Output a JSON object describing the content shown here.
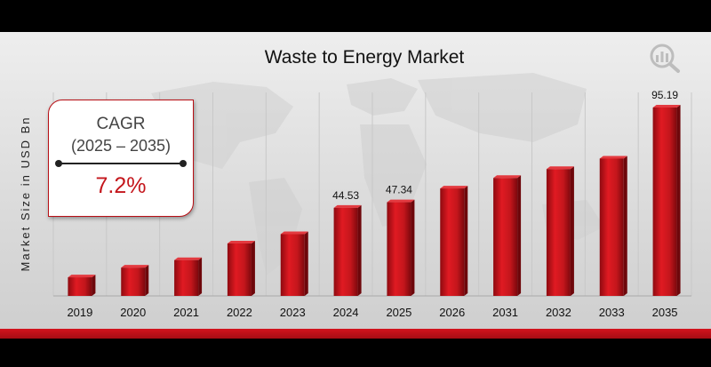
{
  "chart_data": {
    "type": "bar",
    "title": "Waste to Energy Market",
    "ylabel": "Market Size in USD Bn",
    "xlabel": "",
    "categories": [
      "2019",
      "2020",
      "2021",
      "2022",
      "2023",
      "2024",
      "2025",
      "2026",
      "2031",
      "2032",
      "2033",
      "2035"
    ],
    "values": [
      9.4,
      14.3,
      18.1,
      26.5,
      31.2,
      44.53,
      47.34,
      54.3,
      59.6,
      64.1,
      69.4,
      95.19
    ],
    "value_labels": {
      "2024": "44.53",
      "2025": "47.34",
      "2035": "95.19"
    },
    "ylim": [
      0,
      100
    ],
    "grid": "vertical",
    "bar_color": "#c4161c"
  },
  "cagr": {
    "title": "CAGR",
    "period": "(2025 – 2035)",
    "value": "7.2%"
  },
  "colors": {
    "accent": "#c4161c",
    "background": "#000000"
  },
  "logo_icon": "market-research-logo-icon"
}
